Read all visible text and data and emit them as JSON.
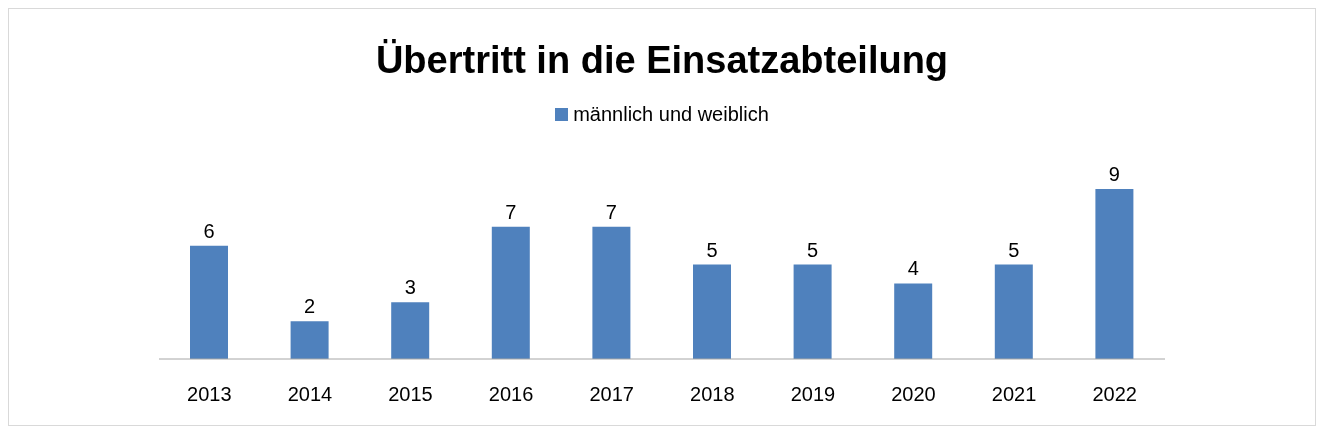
{
  "chart_data": {
    "type": "bar",
    "title": "Übertritt in die Einsatzabteilung",
    "categories": [
      "2013",
      "2014",
      "2015",
      "2016",
      "2017",
      "2018",
      "2019",
      "2020",
      "2021",
      "2022"
    ],
    "series": [
      {
        "name": "männlich und weiblich",
        "color": "#4f81bd",
        "values": [
          6,
          2,
          3,
          7,
          7,
          5,
          5,
          4,
          5,
          9
        ]
      }
    ],
    "data_labels": true,
    "legend": "top",
    "grid": false,
    "tick_labels": "x"
  }
}
